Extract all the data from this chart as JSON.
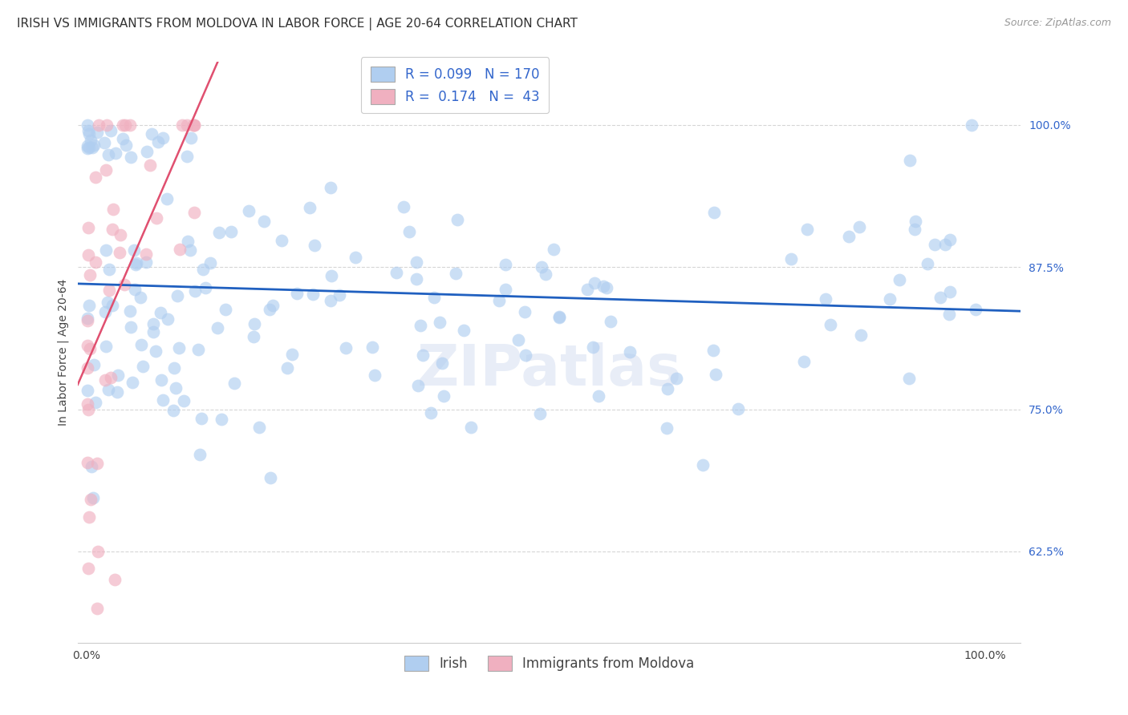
{
  "title": "IRISH VS IMMIGRANTS FROM MOLDOVA IN LABOR FORCE | AGE 20-64 CORRELATION CHART",
  "source_text": "Source: ZipAtlas.com",
  "ylabel": "In Labor Force | Age 20-64",
  "ytick_labels": [
    "62.5%",
    "75.0%",
    "87.5%",
    "100.0%"
  ],
  "ytick_values": [
    0.625,
    0.75,
    0.875,
    1.0
  ],
  "xlim": [
    -0.01,
    1.04
  ],
  "ylim": [
    0.545,
    1.055
  ],
  "irish_R": 0.099,
  "irish_N": 170,
  "moldova_R": 0.174,
  "moldova_N": 43,
  "irish_color": "#b0cef0",
  "moldova_color": "#f0b0c0",
  "irish_line_color": "#2060c0",
  "moldova_line_color": "#e05070",
  "tick_color": "#3366cc",
  "legend_irish_label": "Irish",
  "legend_moldova_label": "Immigrants from Moldova",
  "watermark": "ZIPatlas",
  "title_fontsize": 11,
  "axis_label_fontsize": 10,
  "tick_fontsize": 10,
  "background_color": "#ffffff",
  "grid_color": "#cccccc"
}
